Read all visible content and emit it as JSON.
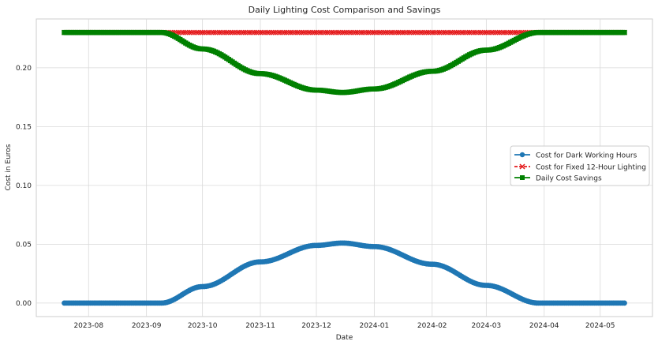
{
  "chart_data": {
    "type": "line",
    "title": "Daily Lighting Cost Comparison and Savings",
    "xlabel": "Date",
    "ylabel": "Cost in Euros",
    "x_range": [
      "2023-07-04",
      "2024-05-29"
    ],
    "ylim": [
      -0.0115,
      0.2415
    ],
    "x_ticks": [
      "2023-08",
      "2023-09",
      "2023-10",
      "2023-11",
      "2023-12",
      "2024-01",
      "2024-02",
      "2024-03",
      "2024-04",
      "2024-05"
    ],
    "y_ticks": [
      "0.00",
      "0.05",
      "0.10",
      "0.15",
      "0.20"
    ],
    "grid": true,
    "legend_position": "center-right",
    "series": [
      {
        "name": "Cost for Dark Working Hours",
        "color": "#1f77b4",
        "marker": "circle",
        "line": "solid",
        "x": [
          "2023-07-19",
          "2023-09-09",
          "2023-10-01",
          "2023-11-01",
          "2023-12-01",
          "2023-12-15",
          "2024-01-01",
          "2024-02-01",
          "2024-03-01",
          "2024-03-29",
          "2024-05-14"
        ],
        "values": [
          0.0,
          0.0,
          0.014,
          0.035,
          0.049,
          0.051,
          0.048,
          0.033,
          0.015,
          0.0,
          0.0
        ]
      },
      {
        "name": "Cost for Fixed 12-Hour Lighting",
        "color": "#e41a1c",
        "marker": "x",
        "line": "dashed",
        "x": [
          "2023-07-19",
          "2024-05-14"
        ],
        "values": [
          0.23,
          0.23
        ]
      },
      {
        "name": "Daily Cost Savings",
        "color": "#008000",
        "marker": "square",
        "line": "solid",
        "x": [
          "2023-07-19",
          "2023-09-09",
          "2023-10-01",
          "2023-11-01",
          "2023-12-01",
          "2023-12-15",
          "2024-01-01",
          "2024-02-01",
          "2024-03-01",
          "2024-03-29",
          "2024-05-14"
        ],
        "values": [
          0.23,
          0.23,
          0.216,
          0.195,
          0.181,
          0.179,
          0.182,
          0.197,
          0.215,
          0.23,
          0.23
        ]
      }
    ]
  }
}
